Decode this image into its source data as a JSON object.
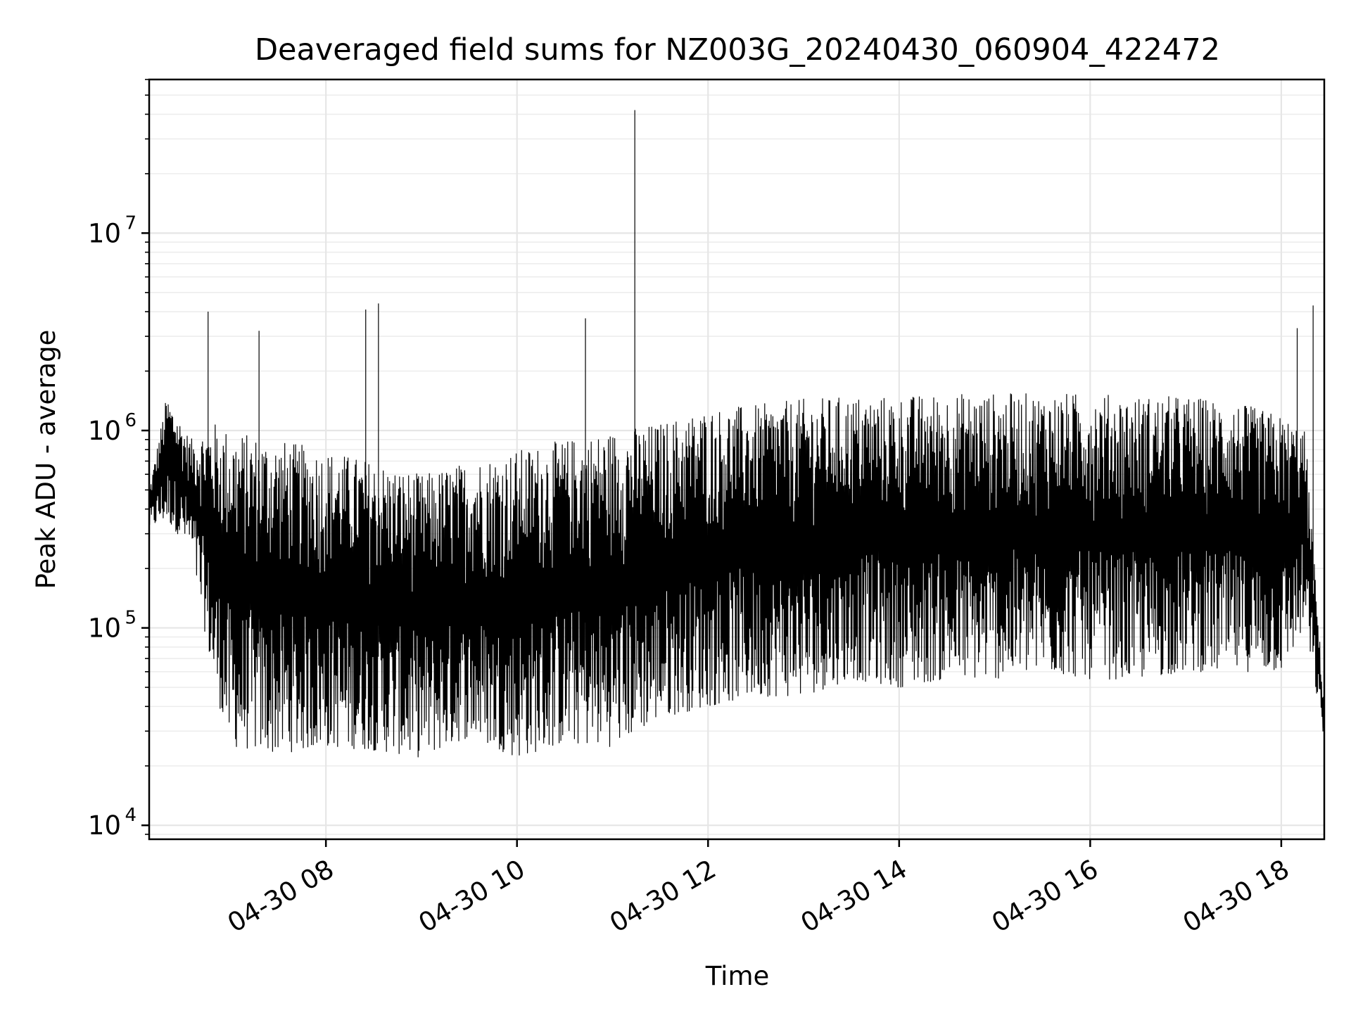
{
  "chart_data": {
    "type": "line",
    "title": "Deaveraged field sums for NZ003G_20240430_060904_422472",
    "xlabel": "Time",
    "ylabel": "Peak ADU - average",
    "yscale": "log",
    "ylim": [
      8500,
      60000000
    ],
    "xlim": [
      "2024-04-30 06:09",
      "2024-04-30 18:27"
    ],
    "grid": true,
    "grid_color": "#e6e6e6",
    "line_color": "#000000",
    "x_ticks": [
      {
        "t": "2024-04-30 08:00",
        "label": "04-30 08"
      },
      {
        "t": "2024-04-30 10:00",
        "label": "04-30 10"
      },
      {
        "t": "2024-04-30 12:00",
        "label": "04-30 12"
      },
      {
        "t": "2024-04-30 14:00",
        "label": "04-30 14"
      },
      {
        "t": "2024-04-30 16:00",
        "label": "04-30 16"
      },
      {
        "t": "2024-04-30 18:00",
        "label": "04-30 18"
      }
    ],
    "y_ticks": [
      {
        "value": 10000,
        "base": "10",
        "exp": "4"
      },
      {
        "value": 100000,
        "base": "10",
        "exp": "5"
      },
      {
        "value": 1000000,
        "base": "10",
        "exp": "6"
      },
      {
        "value": 10000000,
        "base": "10",
        "exp": "7"
      }
    ],
    "envelope": {
      "t": [
        "2024-04-30 06:09",
        "2024-04-30 06:20",
        "2024-04-30 06:35",
        "2024-04-30 06:50",
        "2024-04-30 07:00",
        "2024-04-30 07:30",
        "2024-04-30 08:00",
        "2024-04-30 08:30",
        "2024-04-30 09:00",
        "2024-04-30 09:30",
        "2024-04-30 10:00",
        "2024-04-30 10:30",
        "2024-04-30 11:00",
        "2024-04-30 11:30",
        "2024-04-30 12:00",
        "2024-04-30 12:30",
        "2024-04-30 13:00",
        "2024-04-30 13:30",
        "2024-04-30 14:00",
        "2024-04-30 14:30",
        "2024-04-30 15:00",
        "2024-04-30 15:30",
        "2024-04-30 16:00",
        "2024-04-30 16:30",
        "2024-04-30 17:00",
        "2024-04-30 17:30",
        "2024-04-30 18:00",
        "2024-04-30 18:15",
        "2024-04-30 18:27"
      ],
      "high": [
        500000,
        1500000,
        900000,
        1100000,
        1000000,
        900000,
        800000,
        700000,
        600000,
        700000,
        800000,
        900000,
        1000000,
        1100000,
        1300000,
        1350000,
        1450000,
        1500000,
        1500000,
        1550000,
        1550000,
        1550000,
        1550000,
        1500000,
        1500000,
        1400000,
        1200000,
        1000000,
        40000
      ],
      "low": [
        320000,
        350000,
        250000,
        50000,
        25000,
        23000,
        25000,
        24000,
        22000,
        28000,
        22000,
        26000,
        25000,
        35000,
        40000,
        45000,
        45000,
        55000,
        50000,
        55000,
        55000,
        60000,
        55000,
        55000,
        60000,
        60000,
        60000,
        100000,
        27000
      ]
    },
    "spikes": [
      {
        "t": "2024-04-30 06:46",
        "value": 4000000
      },
      {
        "t": "2024-04-30 07:18",
        "value": 3200000
      },
      {
        "t": "2024-04-30 08:25",
        "value": 4100000
      },
      {
        "t": "2024-04-30 08:33",
        "value": 4400000
      },
      {
        "t": "2024-04-30 10:43",
        "value": 3700000
      },
      {
        "t": "2024-04-30 11:14",
        "value": 42000000
      },
      {
        "t": "2024-04-30 18:10",
        "value": 3300000
      },
      {
        "t": "2024-04-30 18:20",
        "value": 4300000
      }
    ]
  }
}
